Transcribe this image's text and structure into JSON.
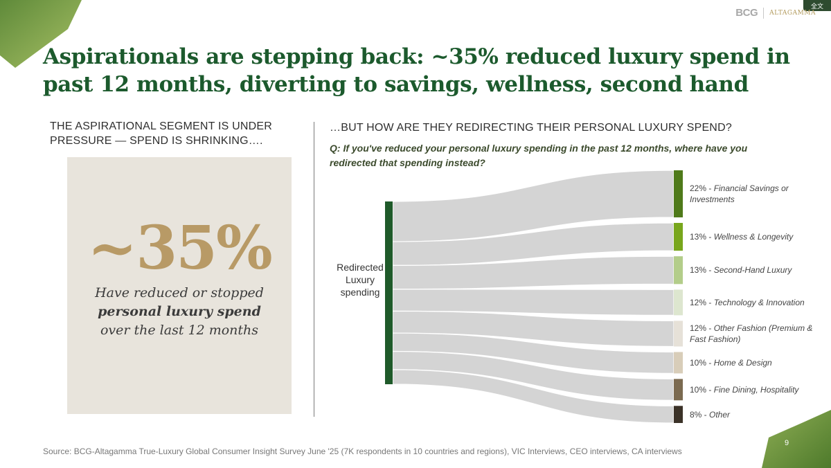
{
  "header": {
    "title": "Aspirationals are stepping back: ~35% reduced luxury spend in past 12 months, diverting to savings, wellness, second hand",
    "logo_bcg": "BCG",
    "logo_altagamma": "ALTAGAMMA",
    "fulltext_chip": "全文"
  },
  "left_panel": {
    "heading": "THE ASPIRATIONAL SEGMENT IS UNDER PRESSURE — SPEND IS SHRINKING….",
    "big_stat": "~35%",
    "caption_part1": "Have reduced or stopped ",
    "caption_bold": "personal luxury spend",
    "caption_part2": " over the last 12 months"
  },
  "right_panel": {
    "heading": "…BUT HOW ARE THEY REDIRECTING THEIR PERSONAL LUXURY SPEND?",
    "question": "Q: If you've reduced your personal luxury spending in the past 12 months, where have you redirected that spending instead?"
  },
  "chart_data": {
    "type": "sankey",
    "source": "Redirected Luxury spending",
    "targets": [
      {
        "pct": "22%",
        "value": 22,
        "label": "Financial Savings or Investments",
        "color": "#4f7a1a"
      },
      {
        "pct": "13%",
        "value": 13,
        "label": "Wellness & Longevity",
        "color": "#78a61c"
      },
      {
        "pct": "13%",
        "value": 13,
        "label": "Second-Hand Luxury",
        "color": "#b3cd8a"
      },
      {
        "pct": "12%",
        "value": 12,
        "label": "Technology & Innovation",
        "color": "#dde6cf"
      },
      {
        "pct": "12%",
        "value": 12,
        "label": "Other Fashion (Premium & Fast Fashion)",
        "color": "#e6e1d8"
      },
      {
        "pct": "10%",
        "value": 10,
        "label": "Home & Design",
        "color": "#d8cdb9"
      },
      {
        "pct": "10%",
        "value": 10,
        "label": "Fine Dining, Hospitality",
        "color": "#7b6a50"
      },
      {
        "pct": "8%",
        "value": 8,
        "label": "Other",
        "color": "#3b3228"
      }
    ],
    "source_color": "#1f5a2a",
    "flow_color": "#d4d4d4"
  },
  "footer": {
    "source": "Source: BCG-Altagamma True-Luxury Global Consumer Insight Survey June '25 (7K respondents in 10 countries and regions), VIC Interviews, CEO interviews, CA interviews",
    "page_number": "9"
  }
}
